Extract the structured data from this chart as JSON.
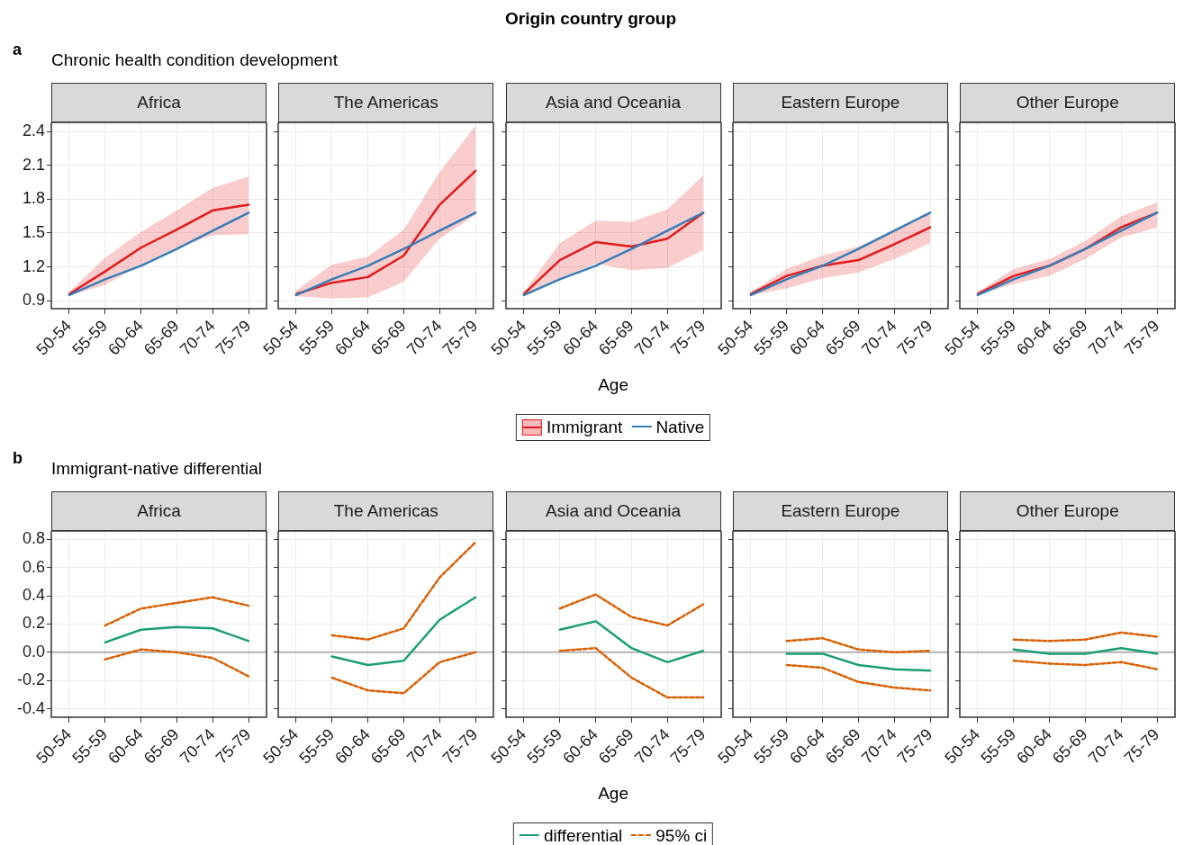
{
  "chart_data": [
    {
      "type": "line",
      "title": "Africa",
      "subtitle": "Chronic health condition development",
      "annotations": [
        "Origin country group",
        "a"
      ],
      "categories": [
        "50-54",
        "55-59",
        "60-64",
        "65-69",
        "70-74",
        "75-79"
      ],
      "ylim": [
        0.83,
        2.48
      ],
      "yticks": [
        0.9,
        1.2,
        1.5,
        1.8,
        2.1,
        2.4
      ],
      "grid": true,
      "marker": "none",
      "series": [
        {
          "color": "#e41a1c",
          "values": [
            0.96,
            1.16,
            1.37,
            1.53,
            1.7,
            1.75
          ],
          "lower": [
            0.95,
            1.04,
            1.22,
            1.37,
            1.48,
            1.49
          ],
          "upper": [
            0.98,
            1.28,
            1.51,
            1.7,
            1.9,
            2.0
          ]
        },
        {
          "color": "#377eb8",
          "values": [
            0.95,
            1.09,
            1.21,
            1.36,
            1.52,
            1.68
          ]
        }
      ]
    },
    {
      "type": "line",
      "title": "The Americas",
      "categories": [
        "50-54",
        "55-59",
        "60-64",
        "65-69",
        "70-74",
        "75-79"
      ],
      "ylim": [
        0.83,
        2.48
      ],
      "yticks": [
        0.9,
        1.2,
        1.5,
        1.8,
        2.1,
        2.4
      ],
      "tick_labels": "x",
      "grid": true,
      "marker": "none",
      "series": [
        {
          "color": "#e41a1c",
          "values": [
            0.96,
            1.06,
            1.11,
            1.3,
            1.75,
            2.05
          ],
          "lower": [
            0.94,
            0.92,
            0.93,
            1.07,
            1.45,
            1.66
          ],
          "upper": [
            0.99,
            1.22,
            1.29,
            1.53,
            2.04,
            2.45
          ]
        },
        {
          "color": "#377eb8",
          "values": [
            0.95,
            1.09,
            1.21,
            1.36,
            1.52,
            1.68
          ]
        }
      ]
    },
    {
      "type": "line",
      "title": "Asia and Oceania",
      "xlabel": "Age",
      "legend": "bottom",
      "categories": [
        "50-54",
        "55-59",
        "60-64",
        "65-69",
        "70-74",
        "75-79"
      ],
      "ylim": [
        0.83,
        2.48
      ],
      "yticks": [
        0.9,
        1.2,
        1.5,
        1.8,
        2.1,
        2.4
      ],
      "tick_labels": "x",
      "grid": true,
      "marker": "none",
      "series": [
        {
          "name": "Immigrant",
          "color": "#e41a1c",
          "values": [
            0.96,
            1.26,
            1.42,
            1.38,
            1.45,
            1.68
          ],
          "lower": [
            0.94,
            1.09,
            1.23,
            1.17,
            1.19,
            1.35
          ],
          "upper": [
            0.98,
            1.41,
            1.61,
            1.6,
            1.71,
            2.01
          ]
        },
        {
          "name": "Native",
          "color": "#377eb8",
          "values": [
            0.95,
            1.09,
            1.21,
            1.36,
            1.52,
            1.68
          ]
        }
      ]
    },
    {
      "type": "line",
      "title": "Eastern Europe",
      "categories": [
        "50-54",
        "55-59",
        "60-64",
        "65-69",
        "70-74",
        "75-79"
      ],
      "ylim": [
        0.83,
        2.48
      ],
      "yticks": [
        0.9,
        1.2,
        1.5,
        1.8,
        2.1,
        2.4
      ],
      "tick_labels": "x",
      "grid": true,
      "marker": "none",
      "series": [
        {
          "color": "#e41a1c",
          "values": [
            0.96,
            1.12,
            1.21,
            1.26,
            1.4,
            1.55
          ],
          "lower": [
            0.95,
            1.01,
            1.1,
            1.15,
            1.27,
            1.41
          ],
          "upper": [
            0.98,
            1.18,
            1.3,
            1.38,
            1.53,
            1.69
          ]
        },
        {
          "color": "#377eb8",
          "values": [
            0.95,
            1.09,
            1.21,
            1.36,
            1.52,
            1.68
          ]
        }
      ]
    },
    {
      "type": "line",
      "title": "Other Europe",
      "categories": [
        "50-54",
        "55-59",
        "60-64",
        "65-69",
        "70-74",
        "75-79"
      ],
      "ylim": [
        0.83,
        2.48
      ],
      "yticks": [
        0.9,
        1.2,
        1.5,
        1.8,
        2.1,
        2.4
      ],
      "tick_labels": "x",
      "grid": true,
      "marker": "none",
      "series": [
        {
          "color": "#e41a1c",
          "values": [
            0.96,
            1.12,
            1.21,
            1.36,
            1.55,
            1.68
          ],
          "lower": [
            0.95,
            1.05,
            1.12,
            1.27,
            1.46,
            1.55
          ],
          "upper": [
            0.98,
            1.18,
            1.27,
            1.43,
            1.65,
            1.77
          ]
        },
        {
          "color": "#377eb8",
          "values": [
            0.95,
            1.09,
            1.21,
            1.36,
            1.52,
            1.68
          ]
        }
      ]
    },
    {
      "type": "line",
      "title": "Africa",
      "subtitle": "Immigrant-native differential",
      "annotations": [
        "b"
      ],
      "categories": [
        "50-54",
        "55-59",
        "60-64",
        "65-69",
        "70-74",
        "75-79"
      ],
      "ylim": [
        -0.46,
        0.86
      ],
      "yticks": [
        {
          "value": -0.4,
          "label": "-0.4"
        },
        {
          "value": -0.2,
          "label": "-0.2"
        },
        {
          "value": 0,
          "label": "0.0"
        },
        0.2,
        0.4,
        0.6,
        0.8
      ],
      "grid": true,
      "marker": "none",
      "ref_lines": [
        {
          "axis": "y",
          "value": 0,
          "color": "#b3b3b3"
        }
      ],
      "series": [
        {
          "color": "#1b9e77",
          "line_style": "solid",
          "values": [
            null,
            0.07,
            0.16,
            0.18,
            0.17,
            0.08
          ]
        },
        {
          "color": "#d95f02",
          "line_style": "dashed",
          "values": [
            null,
            0.19,
            0.31,
            0.35,
            0.39,
            0.33
          ]
        },
        {
          "color": "#d95f02",
          "line_style": "dashed",
          "values": [
            null,
            -0.05,
            0.02,
            0.0,
            -0.04,
            -0.17
          ]
        }
      ]
    },
    {
      "type": "line",
      "title": "The Americas",
      "categories": [
        "50-54",
        "55-59",
        "60-64",
        "65-69",
        "70-74",
        "75-79"
      ],
      "ylim": [
        -0.46,
        0.86
      ],
      "yticks": [
        -0.4,
        -0.2,
        0,
        0.2,
        0.4,
        0.6,
        0.8
      ],
      "tick_labels": "x",
      "grid": true,
      "marker": "none",
      "ref_lines": [
        {
          "axis": "y",
          "value": 0,
          "color": "#b3b3b3"
        }
      ],
      "series": [
        {
          "color": "#1b9e77",
          "line_style": "solid",
          "values": [
            null,
            -0.03,
            -0.09,
            -0.06,
            0.23,
            0.39
          ]
        },
        {
          "color": "#d95f02",
          "line_style": "dashed",
          "values": [
            null,
            0.12,
            0.09,
            0.17,
            0.53,
            0.78
          ]
        },
        {
          "color": "#d95f02",
          "line_style": "dashed",
          "values": [
            null,
            -0.18,
            -0.27,
            -0.29,
            -0.07,
            0.0
          ]
        }
      ]
    },
    {
      "type": "line",
      "title": "Asia and Oceania",
      "xlabel": "Age",
      "legend": "bottom",
      "categories": [
        "50-54",
        "55-59",
        "60-64",
        "65-69",
        "70-74",
        "75-79"
      ],
      "ylim": [
        -0.46,
        0.86
      ],
      "yticks": [
        -0.4,
        -0.2,
        0,
        0.2,
        0.4,
        0.6,
        0.8
      ],
      "tick_labels": "x",
      "grid": true,
      "marker": "none",
      "ref_lines": [
        {
          "axis": "y",
          "value": 0,
          "color": "#b3b3b3"
        }
      ],
      "series": [
        {
          "name": "differential",
          "color": "#1b9e77",
          "line_style": "solid",
          "values": [
            null,
            0.16,
            0.22,
            0.03,
            -0.07,
            0.01
          ]
        },
        {
          "name": "95% ci",
          "color": "#d95f02",
          "line_style": "dashed",
          "values": [
            null,
            0.31,
            0.41,
            0.25,
            0.19,
            0.34
          ]
        },
        {
          "color": "#d95f02",
          "line_style": "dashed",
          "values": [
            null,
            0.01,
            0.03,
            -0.18,
            -0.32,
            -0.32
          ]
        }
      ]
    },
    {
      "type": "line",
      "title": "Eastern Europe",
      "categories": [
        "50-54",
        "55-59",
        "60-64",
        "65-69",
        "70-74",
        "75-79"
      ],
      "ylim": [
        -0.46,
        0.86
      ],
      "yticks": [
        -0.4,
        -0.2,
        0,
        0.2,
        0.4,
        0.6,
        0.8
      ],
      "tick_labels": "x",
      "grid": true,
      "marker": "none",
      "ref_lines": [
        {
          "axis": "y",
          "value": 0,
          "color": "#b3b3b3"
        }
      ],
      "series": [
        {
          "color": "#1b9e77",
          "line_style": "solid",
          "values": [
            null,
            -0.01,
            -0.01,
            -0.09,
            -0.12,
            -0.13
          ]
        },
        {
          "color": "#d95f02",
          "line_style": "dashed",
          "values": [
            null,
            0.08,
            0.1,
            0.02,
            0.0,
            0.01
          ]
        },
        {
          "color": "#d95f02",
          "line_style": "dashed",
          "values": [
            null,
            -0.09,
            -0.11,
            -0.21,
            -0.25,
            -0.27
          ]
        }
      ]
    },
    {
      "type": "line",
      "title": "Other Europe",
      "categories": [
        "50-54",
        "55-59",
        "60-64",
        "65-69",
        "70-74",
        "75-79"
      ],
      "ylim": [
        -0.46,
        0.86
      ],
      "yticks": [
        -0.4,
        -0.2,
        0,
        0.2,
        0.4,
        0.6,
        0.8
      ],
      "tick_labels": "x",
      "grid": true,
      "marker": "none",
      "ref_lines": [
        {
          "axis": "y",
          "value": 0,
          "color": "#b3b3b3"
        }
      ],
      "series": [
        {
          "color": "#1b9e77",
          "line_style": "solid",
          "values": [
            null,
            0.02,
            -0.01,
            -0.01,
            0.03,
            -0.01
          ]
        },
        {
          "color": "#d95f02",
          "line_style": "dashed",
          "values": [
            null,
            0.09,
            0.08,
            0.09,
            0.14,
            0.11
          ]
        },
        {
          "color": "#d95f02",
          "line_style": "dashed",
          "values": [
            null,
            -0.06,
            -0.08,
            -0.09,
            -0.07,
            -0.12
          ]
        }
      ]
    }
  ]
}
